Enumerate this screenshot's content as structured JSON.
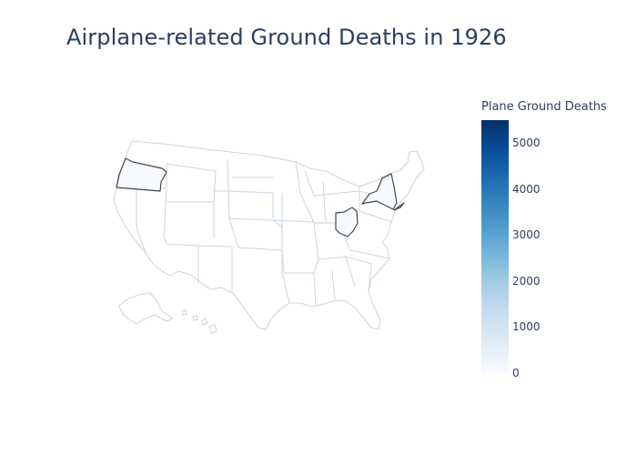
{
  "title": "Airplane-related Ground Deaths in 1926",
  "colorbar": {
    "title": "Plane Ground Deaths",
    "ticks": [
      "0",
      "1000",
      "2000",
      "3000",
      "4000",
      "5000"
    ],
    "range": [
      0,
      5500
    ],
    "colorscale": [
      "#f7fbff",
      "#deebf7",
      "#c6dbef",
      "#9ecae1",
      "#6baed6",
      "#4292c6",
      "#2171b5",
      "#08519c",
      "#08306b"
    ]
  },
  "map": {
    "scope": "usa",
    "border_color": "#c8d4e3",
    "highlight_border_color": "#444444",
    "highlighted_states": [
      {
        "state": "Oregon",
        "value": 0
      },
      {
        "state": "New York",
        "value": 0
      },
      {
        "state": "Ohio",
        "value": 0
      }
    ]
  }
}
